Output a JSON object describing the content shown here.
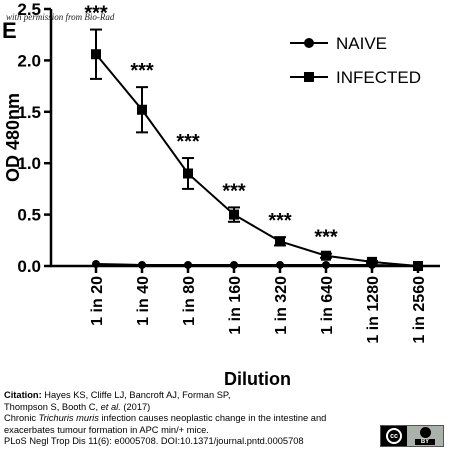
{
  "figure": {
    "panel_label": "E",
    "watermark": "with permission from Bio-Rad"
  },
  "chart_data": {
    "type": "line",
    "categories": [
      "1 in 20",
      "1 in 40",
      "1 in 80",
      "1 in 160",
      "1 in 320",
      "1 in 640",
      "1 in 1280",
      "1 in 2560"
    ],
    "series": [
      {
        "name": "NAIVE",
        "marker": "circle",
        "values": [
          0.02,
          0.01,
          0.01,
          0.01,
          0.01,
          0.01,
          0.01,
          0.0
        ],
        "errors": [
          0,
          0,
          0,
          0,
          0,
          0,
          0,
          0
        ]
      },
      {
        "name": "INFECTED",
        "marker": "square",
        "values": [
          2.06,
          1.52,
          0.9,
          0.5,
          0.24,
          0.1,
          0.04,
          0.0
        ],
        "errors": [
          0.24,
          0.22,
          0.15,
          0.07,
          0.04,
          0.02,
          0.01,
          0
        ]
      }
    ],
    "significance": [
      "***",
      "***",
      "***",
      "***",
      "***",
      "***"
    ],
    "xlabel": "Dilution",
    "ylabel": "OD 480nm",
    "ylim": [
      0,
      2.5
    ],
    "yticks": [
      "0.0",
      "0.5",
      "1.0",
      "1.5",
      "2.0",
      "2.5"
    ],
    "grid": false,
    "legend": "top-right"
  },
  "citation": {
    "label": "Citation:",
    "line1": "Hayes KS, Cliffe LJ, Bancroft AJ, Forman SP,",
    "line2_pre": "Thompson S, Booth C, ",
    "line2_italic": "et al.",
    "line2_post": " (2017)",
    "line3_pre": "Chronic ",
    "line3_italic": "Trichuris muris",
    "line3_post": " infection causes neoplastic change in the intestine and",
    "line4": "exacerbates tumour formation in APC min/+ mice.",
    "line5": "PLoS Negl Trop Dis 11(6): e0005708. DOI:10.1371/journal.pntd.0005708"
  },
  "license": {
    "cc": "cc",
    "by": "BY"
  }
}
